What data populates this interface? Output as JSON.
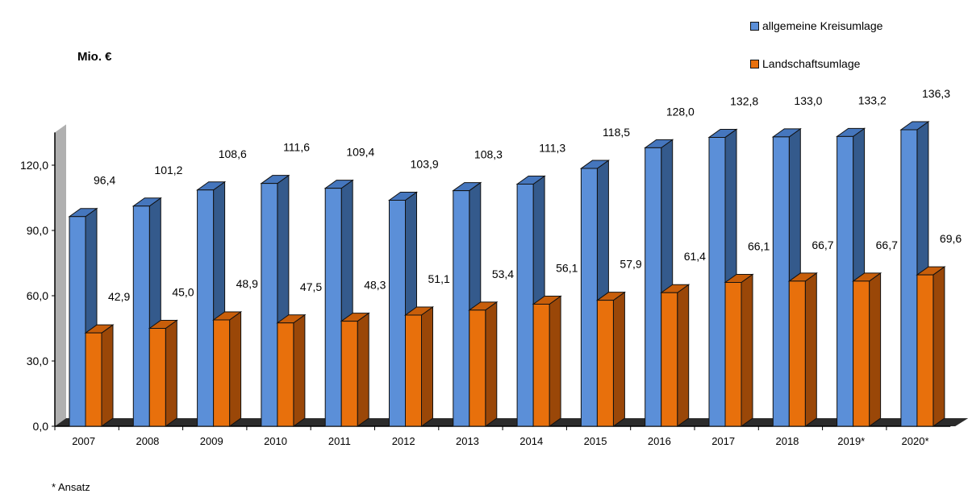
{
  "chart_data": {
    "type": "bar",
    "style": "3d-clustered-column",
    "ylabel": "Mio. €",
    "ylim": [
      0,
      138
    ],
    "yticks": [
      "0,0",
      "30,0",
      "60,0",
      "90,0",
      "120,0"
    ],
    "ytick_values": [
      0,
      30,
      60,
      90,
      120
    ],
    "grid": false,
    "legend_position": "top-right",
    "categories": [
      "2007",
      "2008",
      "2009",
      "2010",
      "2011",
      "2012",
      "2013",
      "2014",
      "2015",
      "2016",
      "2017",
      "2018",
      "2019*",
      "2020*"
    ],
    "series": [
      {
        "name": "allgemeine Kreisumlage",
        "color": "#5b8fd8",
        "values": [
          96.4,
          101.2,
          108.6,
          111.6,
          109.4,
          103.9,
          108.3,
          111.3,
          118.5,
          128.0,
          132.8,
          133.0,
          133.2,
          136.3
        ],
        "labels": [
          "96,4",
          "101,2",
          "108,6",
          "111,6",
          "109,4",
          "103,9",
          "108,3",
          "111,3",
          "118,5",
          "128,0",
          "132,8",
          "133,0",
          "133,2",
          "136,3"
        ]
      },
      {
        "name": "Landschaftsumlage",
        "color": "#e8700c",
        "values": [
          42.9,
          45.0,
          48.9,
          47.5,
          48.3,
          51.1,
          53.4,
          56.1,
          57.9,
          61.4,
          66.1,
          66.7,
          66.7,
          69.6
        ],
        "labels": [
          "42,9",
          "45,0",
          "48,9",
          "47,5",
          "48,3",
          "51,1",
          "53,4",
          "56,1",
          "57,9",
          "61,4",
          "66,1",
          "66,7",
          "66,7",
          "69,6"
        ]
      }
    ],
    "footnote": "* Ansatz"
  }
}
